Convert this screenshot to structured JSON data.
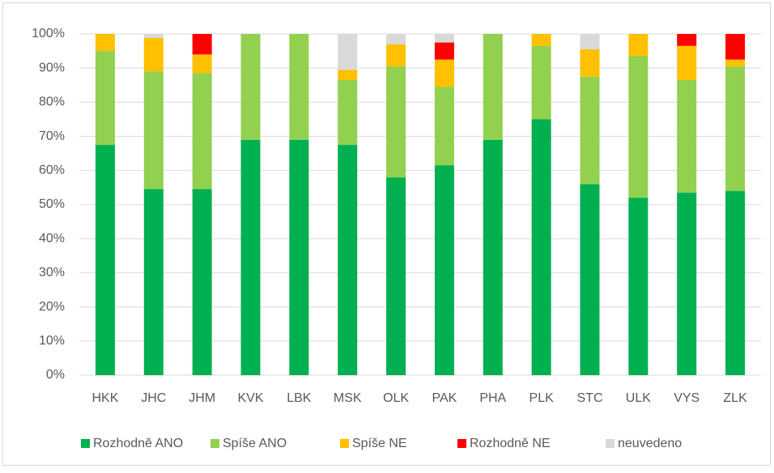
{
  "chart_data": {
    "type": "stacked_bar",
    "categories": [
      "HKK",
      "JHC",
      "JHM",
      "KVK",
      "LBK",
      "MSK",
      "OLK",
      "PAK",
      "PHA",
      "PLK",
      "STC",
      "ULK",
      "VYS",
      "ZLK"
    ],
    "series": [
      {
        "name": "Rozhodně ANO",
        "color": "#00b050",
        "values": [
          67.5,
          54.5,
          54.5,
          69,
          69,
          67.5,
          58,
          61.5,
          69,
          75,
          56,
          52,
          53.5,
          54
        ]
      },
      {
        "name": "Spíše ANO",
        "color": "#92d050",
        "values": [
          27.5,
          34.5,
          34,
          31,
          31,
          19,
          32.5,
          23,
          31,
          21.5,
          31.5,
          41.5,
          33,
          36.5
        ]
      },
      {
        "name": "Spíše NE",
        "color": "#ffc000",
        "values": [
          5,
          9.8,
          5.5,
          0,
          0,
          3,
          6.5,
          8,
          0,
          3.5,
          8,
          6.5,
          10,
          2
        ]
      },
      {
        "name": "Rozhodně NE",
        "color": "#ff0000",
        "values": [
          0,
          0,
          6,
          0,
          0,
          0,
          0,
          5,
          0,
          0,
          0,
          0,
          3.5,
          7.5
        ]
      },
      {
        "name": "neuvedeno",
        "color": "#d9d9d9",
        "values": [
          0,
          1.2,
          0,
          0,
          0,
          10.5,
          3,
          2.5,
          0,
          0,
          4.5,
          0,
          0,
          0
        ]
      }
    ],
    "ylim": [
      0,
      100
    ],
    "yticks": [
      {
        "value": 0,
        "label": "0%"
      },
      {
        "value": 10,
        "label": "10%"
      },
      {
        "value": 20,
        "label": "20%"
      },
      {
        "value": 30,
        "label": "30%"
      },
      {
        "value": 40,
        "label": "40%"
      },
      {
        "value": 50,
        "label": "50%"
      },
      {
        "value": 60,
        "label": "60%"
      },
      {
        "value": 70,
        "label": "70%"
      },
      {
        "value": 80,
        "label": "80%"
      },
      {
        "value": 90,
        "label": "90%"
      },
      {
        "value": 100,
        "label": "100%"
      }
    ],
    "grid": true,
    "legend": "bottom"
  }
}
